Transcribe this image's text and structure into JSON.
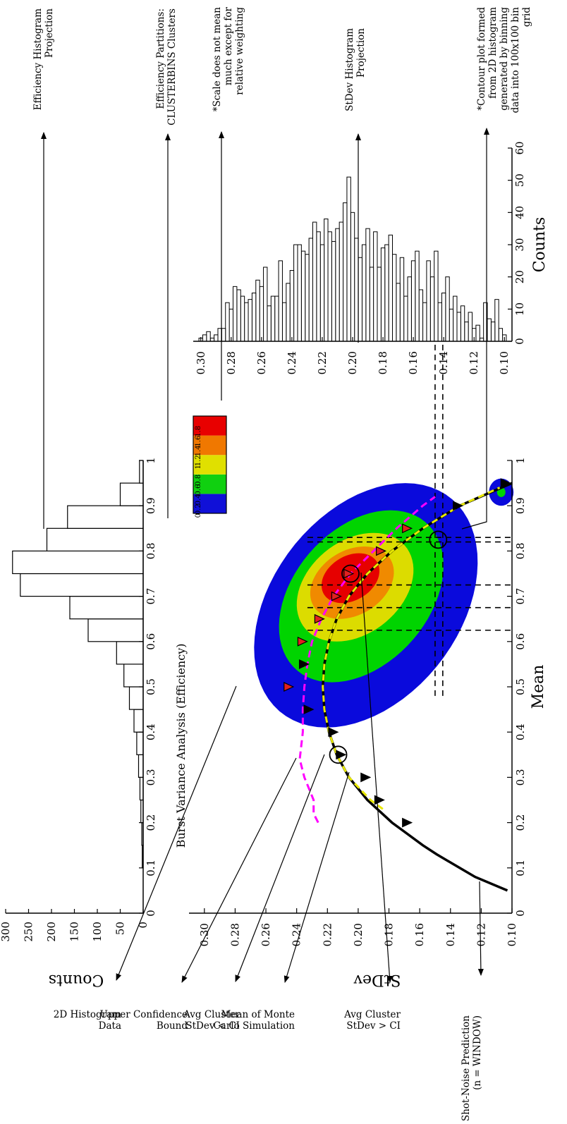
{
  "chart_data": [
    {
      "id": "main",
      "type": "heatmap",
      "title": "Burst Variance Analysis (Efficiency)",
      "xlabel": "Mean",
      "ylabel": "StDev",
      "xlim": [
        0,
        1
      ],
      "ylim": [
        0.1,
        0.31
      ],
      "xticks": [
        "0",
        "0.1",
        "0.2",
        "0.3",
        "0.4",
        "0.5",
        "0.6",
        "0.7",
        "0.8",
        "0.9",
        "1"
      ],
      "yticks": [
        "0.10",
        "0.12",
        "0.14",
        "0.16",
        "0.18",
        "0.20",
        "0.22",
        "0.24",
        "0.26",
        "0.28",
        "0.30"
      ],
      "contour_peak": {
        "mean": 0.74,
        "stdev": 0.205
      },
      "contour_levels": [
        {
          "level": 0.1,
          "color": "#0a0adc",
          "mean": 0.68,
          "stdev": 0.195,
          "rx": 0.27,
          "ry": 0.068,
          "tilt": -0.095
        },
        {
          "level": 0.4,
          "color": "#00d400",
          "mean": 0.7,
          "stdev": 0.198,
          "rx": 0.19,
          "ry": 0.05,
          "tilt": -0.1
        },
        {
          "level": 0.8,
          "color": "#dcdc00",
          "mean": 0.72,
          "stdev": 0.202,
          "rx": 0.12,
          "ry": 0.036,
          "tilt": -0.1
        },
        {
          "level": 1.2,
          "color": "#f08a00",
          "mean": 0.73,
          "stdev": 0.204,
          "rx": 0.08,
          "ry": 0.026,
          "tilt": -0.1
        },
        {
          "level": 1.6,
          "color": "#e60000",
          "mean": 0.74,
          "stdev": 0.205,
          "rx": 0.055,
          "ry": 0.018,
          "tilt": -0.1
        }
      ],
      "secondary_contour": {
        "mean": 0.93,
        "stdev": 0.107,
        "rx": 0.03,
        "ry": 0.008
      },
      "series": [
        {
          "name": "Shot-Noise Prediction (n = WINDOW)",
          "type": "line",
          "color": "#000000",
          "x": [
            0.05,
            0.08,
            0.1,
            0.13,
            0.15,
            0.18,
            0.2,
            0.25,
            0.3,
            0.35,
            0.4,
            0.45,
            0.5,
            0.55,
            0.6,
            0.65,
            0.7,
            0.75,
            0.8,
            0.85,
            0.9,
            0.95
          ],
          "y": [
            0.103,
            0.124,
            0.134,
            0.149,
            0.158,
            0.17,
            0.178,
            0.194,
            0.206,
            0.214,
            0.219,
            0.222,
            0.223,
            0.222,
            0.219,
            0.214,
            0.206,
            0.194,
            0.178,
            0.158,
            0.134,
            0.1
          ]
        },
        {
          "name": "Mean of Monte Carlo Simulation",
          "type": "line",
          "color": "#e8e800",
          "x": [
            0.23,
            0.25,
            0.3,
            0.35,
            0.4,
            0.45,
            0.5,
            0.55,
            0.6,
            0.65,
            0.7,
            0.75,
            0.8,
            0.85,
            0.9,
            0.94
          ],
          "y": [
            0.184,
            0.192,
            0.206,
            0.214,
            0.219,
            0.222,
            0.223,
            0.222,
            0.219,
            0.214,
            0.206,
            0.194,
            0.178,
            0.158,
            0.134,
            0.108
          ]
        },
        {
          "name": "Upper Confidence Bound",
          "type": "line",
          "color": "#ff00ff",
          "x": [
            0.2,
            0.22,
            0.25,
            0.3,
            0.34,
            0.4,
            0.45,
            0.5,
            0.55,
            0.6,
            0.65,
            0.7,
            0.75,
            0.8,
            0.85,
            0.9,
            0.92
          ],
          "y": [
            0.226,
            0.229,
            0.229,
            0.235,
            0.238,
            0.236,
            0.236,
            0.235,
            0.233,
            0.23,
            0.224,
            0.216,
            0.205,
            0.19,
            0.175,
            0.158,
            0.15
          ]
        },
        {
          "name": "Avg Cluster StDev < CI",
          "type": "scatter",
          "marker": "black triangle",
          "x": [
            0.2,
            0.25,
            0.3,
            0.35,
            0.4,
            0.45,
            0.55,
            0.9,
            0.95
          ],
          "y": [
            0.168,
            0.186,
            0.195,
            0.211,
            0.216,
            0.232,
            0.235,
            0.135,
            0.104
          ]
        },
        {
          "name": "Avg Cluster StDev > CI",
          "type": "scatter",
          "marker": "red triangle",
          "x": [
            0.5,
            0.6,
            0.65,
            0.7,
            0.75,
            0.8,
            0.85
          ],
          "y": [
            0.245,
            0.236,
            0.225,
            0.214,
            0.206,
            0.185,
            0.168
          ]
        }
      ],
      "circled_points": [
        {
          "x": 0.35,
          "y": 0.213
        },
        {
          "x": 0.75,
          "y": 0.205
        },
        {
          "x": 0.825,
          "y": 0.148
        }
      ],
      "partition_lines_x": [
        0.625,
        0.675,
        0.725,
        0.82,
        0.83
      ],
      "partition_lines_y": [
        0.145,
        0.15
      ]
    },
    {
      "id": "efficiency_histogram",
      "type": "bar",
      "ylabel": "Counts",
      "xlim": [
        0,
        1
      ],
      "ylim": [
        0,
        300
      ],
      "xticks": [
        "0",
        "0.1",
        "0.2",
        "0.3",
        "0.4",
        "0.5",
        "0.6",
        "0.7",
        "0.8",
        "0.9",
        "1"
      ],
      "yticks": [
        "0",
        "50",
        "100",
        "150",
        "200",
        "250",
        "300"
      ],
      "bin_width": 0.05,
      "bin_starts": [
        0.1,
        0.15,
        0.2,
        0.25,
        0.3,
        0.35,
        0.4,
        0.45,
        0.5,
        0.55,
        0.6,
        0.65,
        0.7,
        0.75,
        0.8,
        0.85,
        0.9,
        0.95
      ],
      "values": [
        2,
        3,
        5,
        7,
        10,
        14,
        20,
        30,
        42,
        58,
        120,
        160,
        268,
        285,
        210,
        165,
        50,
        8
      ]
    },
    {
      "id": "stdev_histogram",
      "type": "bar",
      "xlabel": "Counts",
      "xlim": [
        0,
        60
      ],
      "xticks": [
        "0",
        "10",
        "20",
        "30",
        "40",
        "50",
        "60"
      ],
      "ylim": [
        0.095,
        0.305
      ],
      "yticks": [
        "0.10",
        "0.12",
        "0.14",
        "0.16",
        "0.18",
        "0.20",
        "0.22",
        "0.24",
        "0.26",
        "0.28",
        "0.30"
      ],
      "bin_width": 0.0025,
      "bin_centers": [
        0.1,
        0.1025,
        0.105,
        0.1075,
        0.11,
        0.1125,
        0.115,
        0.1175,
        0.12,
        0.1225,
        0.125,
        0.1275,
        0.13,
        0.1325,
        0.135,
        0.1375,
        0.14,
        0.1425,
        0.145,
        0.1475,
        0.15,
        0.1525,
        0.155,
        0.1575,
        0.16,
        0.1625,
        0.165,
        0.1675,
        0.17,
        0.1725,
        0.175,
        0.1775,
        0.18,
        0.1825,
        0.185,
        0.1875,
        0.19,
        0.1925,
        0.195,
        0.1975,
        0.2,
        0.2025,
        0.205,
        0.2075,
        0.21,
        0.2125,
        0.215,
        0.2175,
        0.22,
        0.2225,
        0.225,
        0.2275,
        0.23,
        0.2325,
        0.235,
        0.2375,
        0.24,
        0.2425,
        0.245,
        0.2475,
        0.25,
        0.2525,
        0.255,
        0.2575,
        0.26,
        0.2625,
        0.265,
        0.2675,
        0.27,
        0.2725,
        0.275,
        0.2775,
        0.28,
        0.2825,
        0.285,
        0.2875,
        0.29,
        0.2925,
        0.295,
        0.2975,
        0.3,
        0.3025
      ],
      "values": [
        2,
        4,
        13,
        6,
        7,
        12,
        1,
        5,
        4,
        9,
        6,
        11,
        9,
        14,
        10,
        20,
        15,
        12,
        28,
        20,
        25,
        12,
        16,
        28,
        25,
        20,
        14,
        26,
        18,
        27,
        33,
        30,
        29,
        23,
        34,
        23,
        35,
        30,
        26,
        32,
        40,
        51,
        43,
        37,
        35,
        31,
        34,
        38,
        30,
        34,
        37,
        32,
        27,
        28,
        30,
        30,
        22,
        18,
        12,
        25,
        14,
        14,
        11,
        23,
        17,
        19,
        15,
        13,
        12,
        14,
        16,
        17,
        10,
        12,
        4,
        4,
        2,
        1,
        3,
        2,
        1,
        0
      ]
    },
    {
      "id": "colorbar",
      "type": "heatmap",
      "ticks": [
        "0",
        "0.2",
        "0.4",
        "0.6",
        "0.8",
        "1",
        "1.2",
        "1.4",
        "1.6",
        "1.8"
      ],
      "range": [
        0,
        2
      ],
      "bands": [
        {
          "from": 0,
          "to": 0.4,
          "color": "#1010d8"
        },
        {
          "from": 0.4,
          "to": 0.8,
          "color": "#10d010"
        },
        {
          "from": 0.8,
          "to": 1.2,
          "color": "#e0e000"
        },
        {
          "from": 1.2,
          "to": 1.6,
          "color": "#f07800"
        },
        {
          "from": 1.6,
          "to": 2.0,
          "color": "#e80000"
        }
      ]
    }
  ],
  "annotations": [
    {
      "id": "ann_eff_hist",
      "text": [
        "Efficiency Histogram",
        "Projection"
      ]
    },
    {
      "id": "ann_partitions",
      "text": [
        "Efficiency Partitions:",
        "CLUSTERBINS Clusters"
      ]
    },
    {
      "id": "ann_scale",
      "text": [
        "*Scale does not mean",
        "much except for",
        "relative weighting"
      ]
    },
    {
      "id": "ann_stdev_hist",
      "text": [
        "StDev Histogram",
        "Projection"
      ]
    },
    {
      "id": "ann_contour",
      "text": [
        "*Contour plot formed",
        "from 2D histogram",
        "generated by binning",
        "data into 100x100 bin",
        "grid"
      ]
    },
    {
      "id": "ann_2d",
      "text": [
        "2D Histogram",
        "Data"
      ]
    },
    {
      "id": "ann_ucb",
      "text": [
        "Upper Confidence",
        "Bound"
      ]
    },
    {
      "id": "ann_lt_ci",
      "text": [
        "Avg Cluster",
        "StDev < CI"
      ]
    },
    {
      "id": "ann_mc",
      "text": [
        "Mean of Monte",
        "Carlo Simulation"
      ]
    },
    {
      "id": "ann_gt_ci",
      "text": [
        "Avg Cluster",
        "StDev > CI"
      ]
    },
    {
      "id": "ann_shot",
      "text": [
        "Shot-Noise Prediction",
        "(n = WINDOW)"
      ]
    }
  ]
}
